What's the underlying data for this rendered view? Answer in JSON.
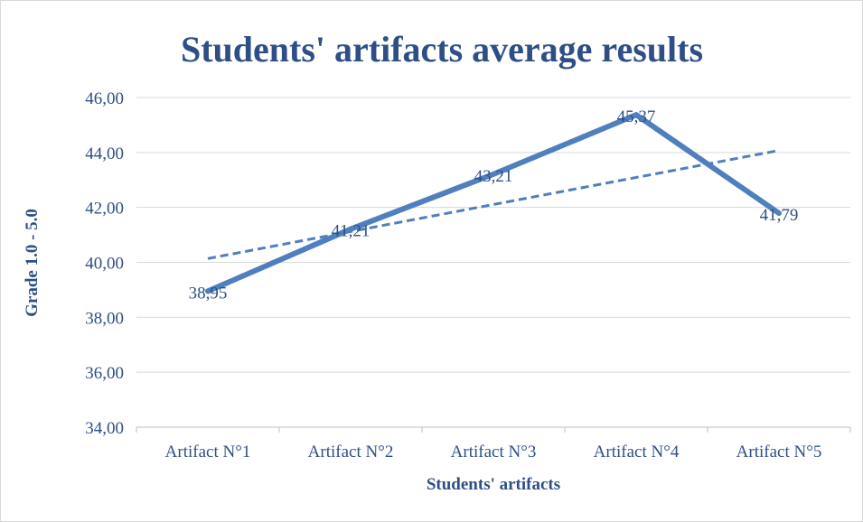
{
  "chart_data": {
    "type": "line",
    "title": "Students' artifacts average results",
    "xlabel": "Students' artifacts",
    "ylabel": "Grade 1.0 - 5.0",
    "categories": [
      "Artifact N°1",
      "Artifact N°2",
      "Artifact N°3",
      "Artifact N°4",
      "Artifact N°5"
    ],
    "series": [
      {
        "values": [
          38.95,
          41.21,
          43.21,
          45.37,
          41.79
        ],
        "labels": [
          "38,95",
          "41,21",
          "43,21",
          "45,37",
          "41,79"
        ],
        "color": "#4f7fbf",
        "style": "solid"
      }
    ],
    "trendline": {
      "type": "linear",
      "style": "dashed",
      "color": "#4f7fbf"
    },
    "ylim": [
      34,
      46
    ],
    "yticks": [
      34,
      36,
      38,
      40,
      42,
      44,
      46
    ],
    "ytick_labels": [
      "34,00",
      "36,00",
      "38,00",
      "40,00",
      "42,00",
      "44,00",
      "46,00"
    ],
    "grid": true,
    "legend": "none",
    "colors": {
      "title": "#2e4f86",
      "text": "#2e4f86",
      "grid": "#d9d9d9",
      "axis": "#bfbfbf"
    }
  }
}
